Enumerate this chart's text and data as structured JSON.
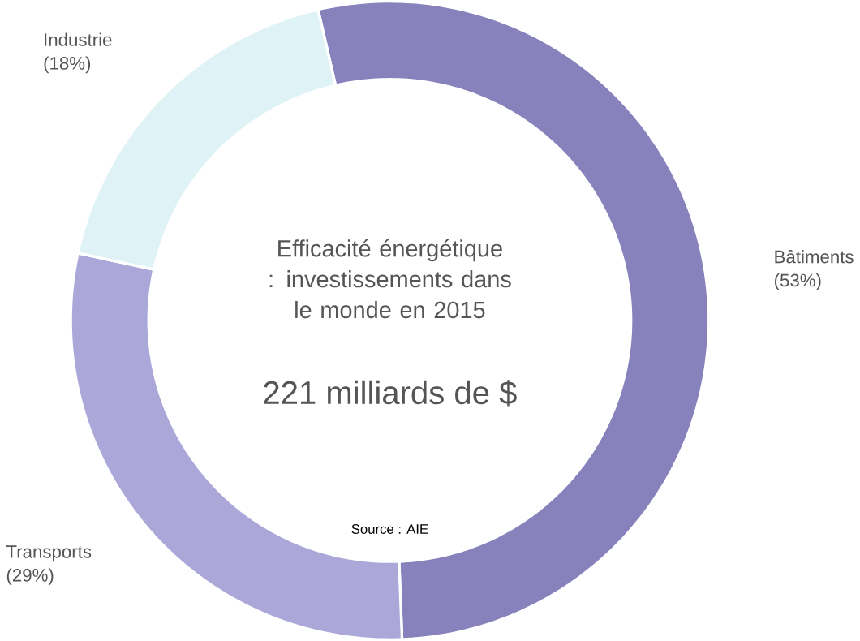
{
  "chart_data": {
    "type": "donut",
    "title": "Efficacité énergétique : investissements dans le monde en 2015",
    "subtitle": "221 milliards de $",
    "annotations": [
      "Source : AIE"
    ],
    "categories": [
      "Bâtiments",
      "Transports",
      "Industrie"
    ],
    "values": [
      53,
      29,
      18
    ],
    "value_labels": [
      "(53%)",
      "(29%)",
      "(18%)"
    ],
    "colors": [
      "#8882bc",
      "#aba8d9",
      "#dff3f6"
    ]
  }
}
